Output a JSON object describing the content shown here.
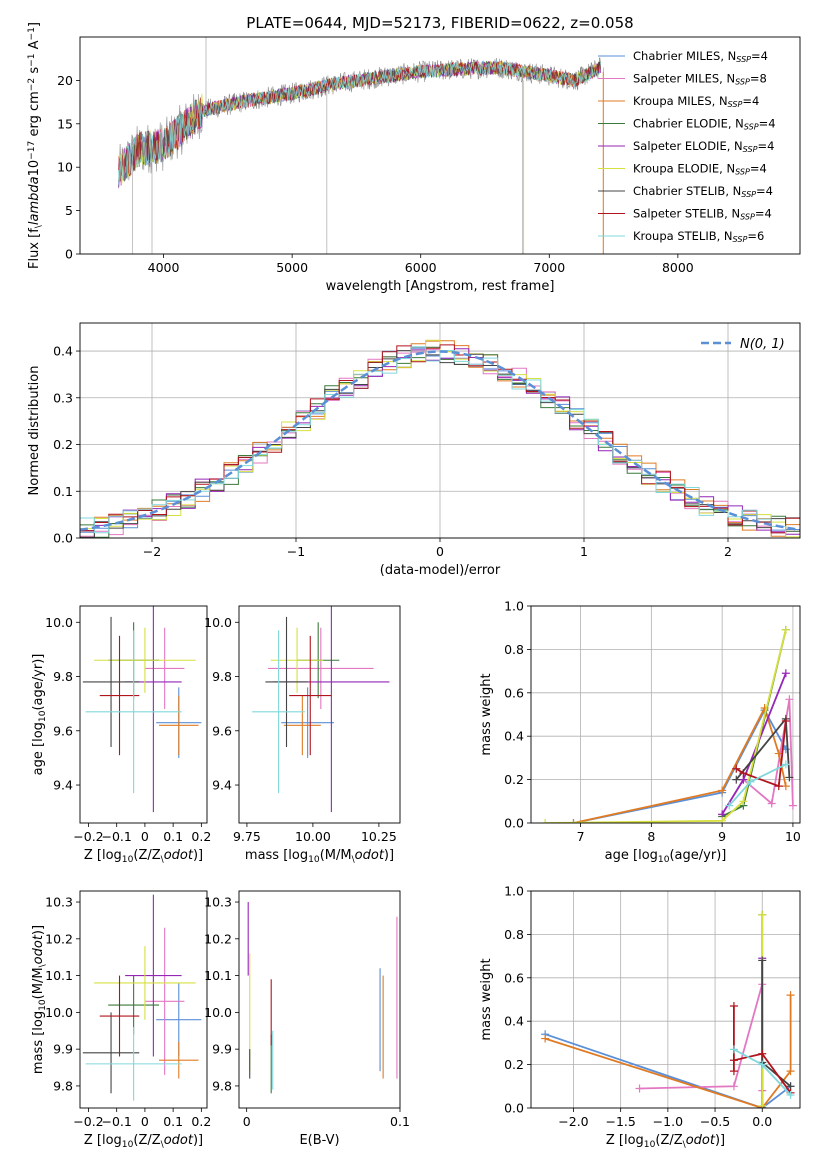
{
  "figure": {
    "title": "PLATE=0644, MJD=52173, FIBERID=0622, z=0.058"
  },
  "chart_data": [
    {
      "id": "spectrum",
      "type": "line",
      "xlabel": "wavelength [Angstrom, rest frame]",
      "ylabel": "Flux [f$_\\lambda$10$^{-17}$ erg cm$^{-2}$ s$^{-1}$ A$^{-1}$]",
      "xlim": [
        3350,
        8950
      ],
      "ylim": [
        0,
        25
      ],
      "xticks": [
        4000,
        5000,
        6000,
        7000,
        8000
      ],
      "yticks": [
        0,
        5,
        10,
        15,
        20
      ],
      "grid": false,
      "legend_position": "right",
      "series": [
        {
          "name": "Chabrier MILES, N_SSP=4",
          "color": "#5b8fd6"
        },
        {
          "name": "Salpeter MILES, N_SSP=8",
          "color": "#e377c2"
        },
        {
          "name": "Kroupa MILES, N_SSP=4",
          "color": "#e07b24"
        },
        {
          "name": "Chabrier ELODIE, N_SSP=4",
          "color": "#3a7a3a"
        },
        {
          "name": "Salpeter ELODIE, N_SSP=4",
          "color": "#9526b6"
        },
        {
          "name": "Kroupa ELODIE, N_SSP=4",
          "color": "#d6e040"
        },
        {
          "name": "Chabrier STELIB, N_SSP=4",
          "color": "#444444"
        },
        {
          "name": "Salpeter STELIB, N_SSP=4",
          "color": "#b0151e"
        },
        {
          "name": "Kroupa STELIB, N_SSP=6",
          "color": "#80d8dc"
        }
      ],
      "spectrum_trend": {
        "x": [
          3650,
          3800,
          4000,
          4300,
          4600,
          5000,
          5300,
          5600,
          6000,
          6300,
          6600,
          6900,
          7200,
          7400
        ],
        "y": [
          9.5,
          12,
          12.5,
          16.5,
          17.5,
          18.5,
          19.5,
          20.2,
          21.0,
          21.3,
          21.5,
          20.8,
          20.0,
          21.5
        ]
      }
    },
    {
      "id": "residuals",
      "type": "line",
      "xlabel": "(data-model)/error",
      "ylabel": "Normed distribution",
      "xlim": [
        -2.5,
        2.5
      ],
      "ylim": [
        0,
        0.46
      ],
      "xticks": [
        -2,
        -1,
        0,
        1,
        2
      ],
      "yticks": [
        0.0,
        0.1,
        0.2,
        0.3,
        0.4
      ],
      "grid": true,
      "legend_position": "top-right",
      "reference_curve": {
        "name": "$\\mathcal{N}(0,1)$",
        "color": "#5b8fd6",
        "mean": 0,
        "sigma": 1
      },
      "histogram_bin_width": 0.1
    },
    {
      "id": "age_vs_Z",
      "type": "scatter",
      "xlabel": "Z [log$_{10}$(Z/Z$_\\odot$)]",
      "ylabel": "age  [log$_{10}$(age/yr)]",
      "xlim": [
        -0.23,
        0.22
      ],
      "ylim": [
        9.26,
        10.06
      ],
      "xticks": [
        -0.2,
        -0.1,
        0.0,
        0.1,
        0.2
      ],
      "yticks": [
        9.4,
        9.6,
        9.8,
        10.0
      ],
      "points": [
        {
          "x": 0.12,
          "xerr": 0.08,
          "y": 9.63,
          "yerr": 0.13,
          "color": "#5b8fd6"
        },
        {
          "x": 0.07,
          "xerr": 0.07,
          "y": 9.83,
          "yerr": 0.15,
          "color": "#e377c2"
        },
        {
          "x": 0.12,
          "xerr": 0.07,
          "y": 9.62,
          "yerr": 0.11,
          "color": "#e07b24"
        },
        {
          "x": -0.04,
          "xerr": 0.09,
          "y": 9.86,
          "yerr": 0.14,
          "color": "#3a7a3a"
        },
        {
          "x": 0.03,
          "xerr": 0.1,
          "y": 9.78,
          "yerr": 0.48,
          "color": "#9526b6"
        },
        {
          "x": 0.0,
          "xerr": 0.18,
          "y": 9.86,
          "yerr": 0.12,
          "color": "#d6e040"
        },
        {
          "x": -0.12,
          "xerr": 0.1,
          "y": 9.78,
          "yerr": 0.24,
          "color": "#444444"
        },
        {
          "x": -0.09,
          "xerr": 0.07,
          "y": 9.73,
          "yerr": 0.22,
          "color": "#b0151e"
        },
        {
          "x": -0.04,
          "xerr": 0.17,
          "y": 9.67,
          "yerr": 0.3,
          "color": "#80d8dc"
        }
      ]
    },
    {
      "id": "age_vs_mass",
      "type": "scatter",
      "xlabel": "mass [log$_{10}$(M/M$_\\odot$)]",
      "ylabel": "",
      "xlim": [
        9.72,
        10.33
      ],
      "ylim": [
        9.26,
        10.06
      ],
      "xticks": [
        9.75,
        10.0,
        10.25
      ],
      "xtick_labels": [
        "9.75",
        "10.00",
        "10.25"
      ],
      "yticks": [
        9.4,
        9.6,
        9.8,
        10.0
      ],
      "points": [
        {
          "x": 9.98,
          "xerr": 0.1,
          "y": 9.63,
          "yerr": 0.13,
          "color": "#5b8fd6"
        },
        {
          "x": 10.03,
          "xerr": 0.2,
          "y": 9.83,
          "yerr": 0.15,
          "color": "#e377c2"
        },
        {
          "x": 9.96,
          "xerr": 0.07,
          "y": 9.62,
          "yerr": 0.11,
          "color": "#e07b24"
        },
        {
          "x": 10.02,
          "xerr": 0.08,
          "y": 9.86,
          "yerr": 0.14,
          "color": "#3a7a3a"
        },
        {
          "x": 10.07,
          "xerr": 0.22,
          "y": 9.78,
          "yerr": 0.48,
          "color": "#9526b6"
        },
        {
          "x": 9.94,
          "xerr": 0.1,
          "y": 9.86,
          "yerr": 0.12,
          "color": "#d6e040"
        },
        {
          "x": 9.9,
          "xerr": 0.08,
          "y": 9.78,
          "yerr": 0.24,
          "color": "#444444"
        },
        {
          "x": 9.99,
          "xerr": 0.08,
          "y": 9.73,
          "yerr": 0.22,
          "color": "#b0151e"
        },
        {
          "x": 9.87,
          "xerr": 0.1,
          "y": 9.67,
          "yerr": 0.3,
          "color": "#80d8dc"
        }
      ]
    },
    {
      "id": "mass_weight_vs_age",
      "type": "line",
      "xlabel": "age  [log$_{10}$(age/yr)]",
      "ylabel": "mass weight",
      "xlim": [
        6.3,
        10.1
      ],
      "ylim": [
        0,
        1.0
      ],
      "xticks": [
        7,
        8,
        9,
        10
      ],
      "yticks": [
        0.0,
        0.2,
        0.4,
        0.6,
        0.8,
        1.0
      ],
      "grid": true,
      "series": [
        {
          "name": "Chabrier MILES",
          "color": "#5b8fd6",
          "x": [
            6.9,
            9.0,
            9.6,
            9.9
          ],
          "y": [
            0.0,
            0.14,
            0.52,
            0.34
          ]
        },
        {
          "name": "Salpeter MILES",
          "color": "#e377c2",
          "x": [
            9.0,
            9.3,
            9.7,
            9.95,
            10.0
          ],
          "y": [
            0.04,
            0.2,
            0.09,
            0.57,
            0.08
          ]
        },
        {
          "name": "Kroupa MILES",
          "color": "#e07b24",
          "x": [
            6.9,
            9.0,
            9.6,
            9.8,
            9.9
          ],
          "y": [
            0.0,
            0.15,
            0.53,
            0.32,
            0.17
          ]
        },
        {
          "name": "Chabrier ELODIE",
          "color": "#3a7a3a",
          "x": [
            9.0,
            9.3,
            9.9
          ],
          "y": [
            0.03,
            0.08,
            0.89
          ]
        },
        {
          "name": "Salpeter ELODIE",
          "color": "#9526b6",
          "x": [
            9.0,
            9.3,
            9.9
          ],
          "y": [
            0.04,
            0.2,
            0.69
          ]
        },
        {
          "name": "Kroupa ELODIE",
          "color": "#d6e040",
          "x": [
            6.5,
            9.0,
            9.3,
            9.9
          ],
          "y": [
            0.0,
            0.01,
            0.1,
            0.89
          ]
        },
        {
          "name": "Chabrier STELIB",
          "color": "#444444",
          "x": [
            9.2,
            9.9,
            9.95
          ],
          "y": [
            0.2,
            0.48,
            0.21
          ]
        },
        {
          "name": "Salpeter STELIB",
          "color": "#b0151e",
          "x": [
            9.2,
            9.3,
            9.8,
            9.9
          ],
          "y": [
            0.25,
            0.23,
            0.17,
            0.47
          ]
        },
        {
          "name": "Kroupa STELIB",
          "color": "#80d8dc",
          "x": [
            9.1,
            9.4,
            9.9
          ],
          "y": [
            0.08,
            0.19,
            0.27
          ]
        }
      ]
    },
    {
      "id": "mass_vs_Z",
      "type": "scatter",
      "xlabel": "Z [log$_{10}$(Z/Z$_\\odot$)]",
      "ylabel": "mass [log$_{10}$(M/M$_\\odot$)]",
      "xlim": [
        -0.23,
        0.22
      ],
      "ylim": [
        9.74,
        10.33
      ],
      "xticks": [
        -0.2,
        -0.1,
        0.0,
        0.1,
        0.2
      ],
      "yticks": [
        9.8,
        9.9,
        10.0,
        10.1,
        10.2,
        10.3
      ],
      "points": [
        {
          "x": 0.12,
          "xerr": 0.08,
          "y": 9.98,
          "yerr": 0.1,
          "color": "#5b8fd6"
        },
        {
          "x": 0.07,
          "xerr": 0.07,
          "y": 10.03,
          "yerr": 0.2,
          "color": "#e377c2"
        },
        {
          "x": 0.12,
          "xerr": 0.07,
          "y": 9.87,
          "yerr": 0.05,
          "color": "#e07b24"
        },
        {
          "x": -0.04,
          "xerr": 0.09,
          "y": 10.02,
          "yerr": 0.08,
          "color": "#3a7a3a"
        },
        {
          "x": 0.03,
          "xerr": 0.1,
          "y": 10.1,
          "yerr": 0.22,
          "color": "#9526b6"
        },
        {
          "x": 0.0,
          "xerr": 0.18,
          "y": 10.08,
          "yerr": 0.1,
          "color": "#d6e040"
        },
        {
          "x": -0.12,
          "xerr": 0.1,
          "y": 9.89,
          "yerr": 0.11,
          "color": "#444444"
        },
        {
          "x": -0.09,
          "xerr": 0.07,
          "y": 9.99,
          "yerr": 0.11,
          "color": "#b0151e"
        },
        {
          "x": -0.04,
          "xerr": 0.17,
          "y": 9.86,
          "yerr": 0.1,
          "color": "#80d8dc"
        }
      ]
    },
    {
      "id": "mass_vs_ebv",
      "type": "scatter",
      "xlabel": "E(B-V)",
      "ylabel": "",
      "xlim": [
        -0.005,
        0.1
      ],
      "ylim": [
        9.74,
        10.33
      ],
      "xticks": [
        0.0,
        0.1
      ],
      "xtick_labels": [
        "0",
        "0.1"
      ],
      "yticks": [
        9.8,
        9.9,
        10.0,
        10.1,
        10.2,
        10.3
      ],
      "points": [
        {
          "x": 0.087,
          "y": 9.98,
          "yerr": 0.14,
          "color": "#5b8fd6"
        },
        {
          "x": 0.098,
          "y": 10.04,
          "yerr": 0.22,
          "color": "#e377c2"
        },
        {
          "x": 0.089,
          "y": 9.96,
          "yerr": 0.14,
          "color": "#e07b24"
        },
        {
          "x": 0.016,
          "y": 9.86,
          "yerr": 0.08,
          "color": "#3a7a3a"
        },
        {
          "x": 0.001,
          "y": 10.2,
          "yerr": 0.1,
          "color": "#9526b6"
        },
        {
          "x": 0.002,
          "y": 10.0,
          "yerr": 0.16,
          "color": "#d6e040"
        },
        {
          "x": 0.002,
          "y": 9.86,
          "yerr": 0.04,
          "color": "#444444"
        },
        {
          "x": 0.016,
          "y": 10.0,
          "yerr": 0.09,
          "color": "#b0151e"
        },
        {
          "x": 0.017,
          "y": 9.87,
          "yerr": 0.08,
          "color": "#80d8dc"
        }
      ]
    },
    {
      "id": "mass_weight_vs_Z",
      "type": "line",
      "xlabel": "Z [log$_{10}$(Z/Z$_\\odot$)]",
      "ylabel": "mass weight",
      "xlim": [
        -2.45,
        0.4
      ],
      "ylim": [
        0,
        1.0
      ],
      "xticks": [
        -2.0,
        -1.5,
        -1.0,
        -0.5,
        0.0
      ],
      "xtick_labels": [
        "−2.0",
        "−1.5",
        "−1.0",
        "−0.5",
        "0.0"
      ],
      "yticks": [
        0.0,
        0.2,
        0.4,
        0.6,
        0.8,
        1.0
      ],
      "grid": true,
      "series": [
        {
          "name": "Chabrier MILES",
          "color": "#5b8fd6",
          "x": [
            -2.3,
            0.0,
            0.3
          ],
          "y": [
            0.34,
            0.0,
            0.1
          ]
        },
        {
          "name": "Salpeter MILES",
          "color": "#e377c2",
          "x": [
            -1.3,
            -0.3,
            0.0,
            0.0
          ],
          "y": [
            0.09,
            0.1,
            0.57,
            0.08
          ]
        },
        {
          "name": "Kroupa MILES",
          "color": "#e07b24",
          "x": [
            -2.3,
            0.0,
            0.3,
            0.3
          ],
          "y": [
            0.32,
            0.0,
            0.17,
            0.52
          ]
        },
        {
          "name": "Chabrier ELODIE",
          "color": "#3a7a3a",
          "x": [
            0.0,
            0.0
          ],
          "y": [
            0.89,
            0.0
          ]
        },
        {
          "name": "Salpeter ELODIE",
          "color": "#9526b6",
          "x": [
            0.0,
            0.0
          ],
          "y": [
            0.69,
            0.0
          ]
        },
        {
          "name": "Kroupa ELODIE",
          "color": "#d6e040",
          "x": [
            0.0,
            0.0
          ],
          "y": [
            0.89,
            0.01
          ]
        },
        {
          "name": "Chabrier STELIB",
          "color": "#444444",
          "x": [
            0.0,
            0.0,
            0.3
          ],
          "y": [
            0.68,
            0.21,
            0.1
          ]
        },
        {
          "name": "Salpeter STELIB",
          "color": "#b0151e",
          "x": [
            -0.3,
            -0.3,
            -0.3,
            0.0,
            0.3
          ],
          "y": [
            0.47,
            0.17,
            0.22,
            0.25,
            0.07
          ]
        },
        {
          "name": "Kroupa STELIB",
          "color": "#80d8dc",
          "x": [
            -0.3,
            0.0,
            0.3
          ],
          "y": [
            0.27,
            0.2,
            0.06
          ]
        }
      ]
    }
  ]
}
